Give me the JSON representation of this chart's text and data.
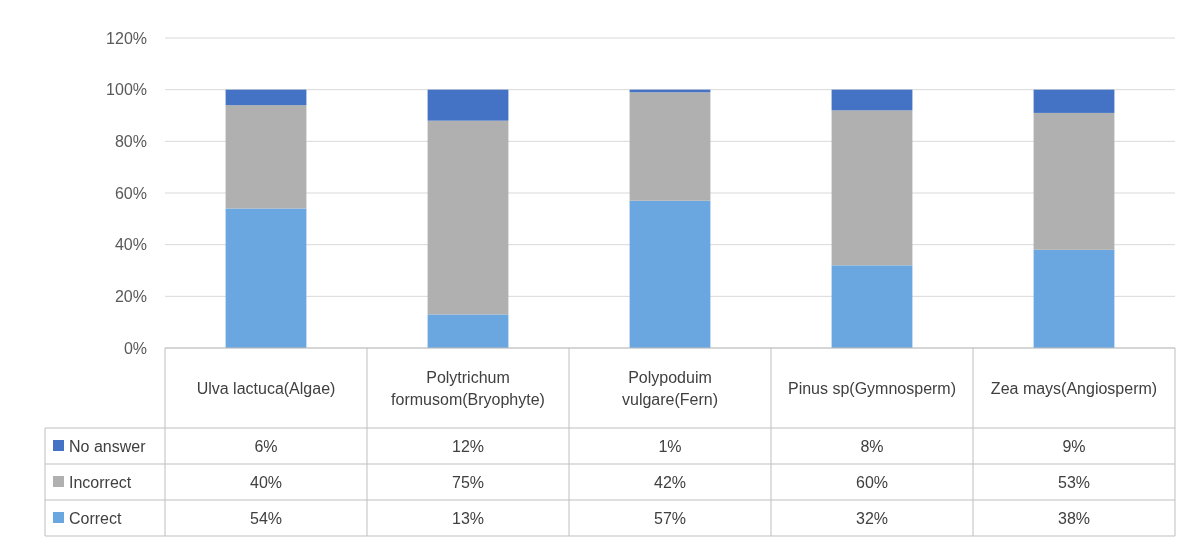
{
  "chart_data": {
    "type": "bar",
    "stacked": true,
    "categories": [
      "Ulva lactuca(Algae)",
      "Polytrichum formusom(Bryophyte)",
      "Polypoduim vulgare(Fern)",
      "Pinus sp(Gymnosperm)",
      "Zea mays(Angiosperm)"
    ],
    "series": [
      {
        "name": "Correct",
        "color": "#6aa6e0",
        "values": [
          54,
          13,
          57,
          32,
          38
        ],
        "value_labels": [
          "54%",
          "13%",
          "57%",
          "32%",
          "38%"
        ]
      },
      {
        "name": "Incorrect",
        "color": "#b0b0b0",
        "values": [
          40,
          75,
          42,
          60,
          53
        ],
        "value_labels": [
          "40%",
          "75%",
          "42%",
          "60%",
          "53%"
        ]
      },
      {
        "name": "No answer",
        "color": "#4472c4",
        "values": [
          6,
          12,
          1,
          8,
          9
        ],
        "value_labels": [
          "6%",
          "12%",
          "1%",
          "8%",
          "9%"
        ]
      }
    ],
    "ylim": [
      0,
      120
    ],
    "yticks": [
      {
        "value": 0,
        "label": "0%"
      },
      {
        "value": 20,
        "label": "20%"
      },
      {
        "value": 40,
        "label": "40%"
      },
      {
        "value": 60,
        "label": "60%"
      },
      {
        "value": 80,
        "label": "80%"
      },
      {
        "value": 100,
        "label": "100%"
      },
      {
        "value": 120,
        "label": "120%"
      }
    ],
    "grid": "y",
    "legend": "bottom left"
  }
}
